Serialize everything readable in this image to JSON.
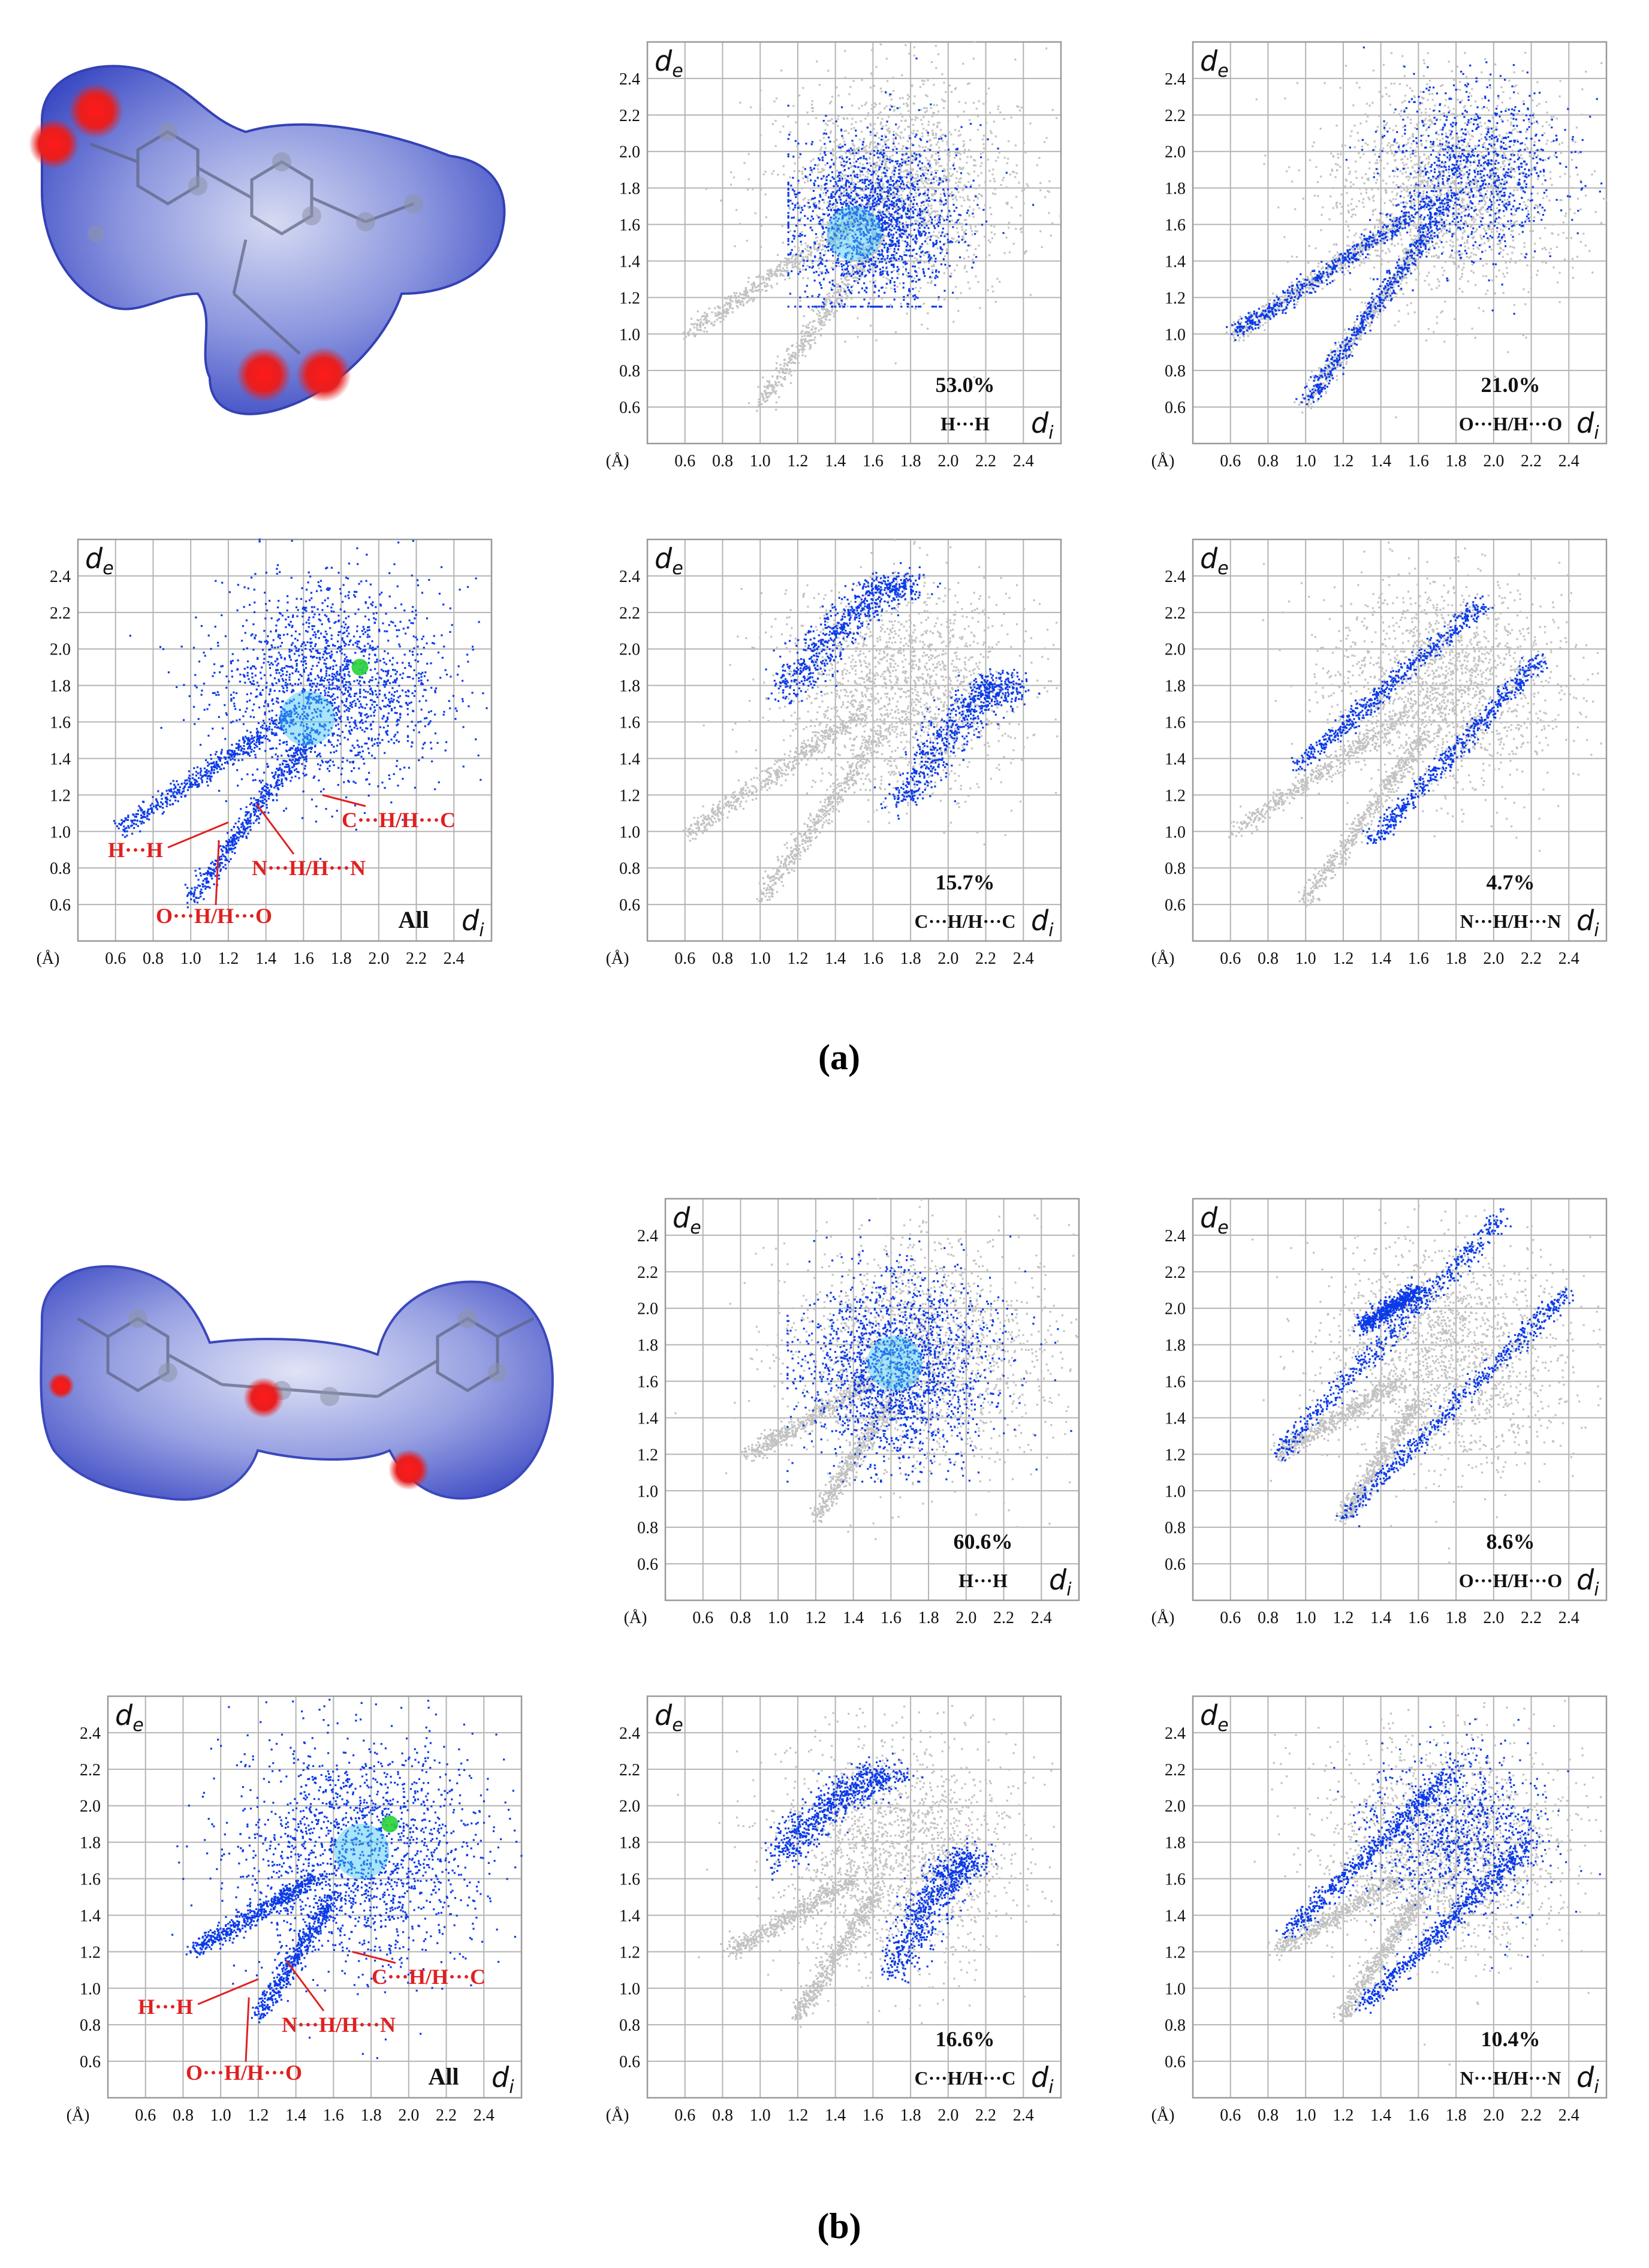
{
  "colors": {
    "grey_points": "#c2c2c2",
    "blue_points": "#0b3be8",
    "cyan_core": "#3fc4f3",
    "green_core": "#28d13a",
    "annotation": "#e02020",
    "surface_blue": "#5a68d0",
    "surface_red": "#e81e1e"
  },
  "panel_labels": {
    "a": "(a)",
    "b": "(b)"
  },
  "molecules": [
    {
      "name": "hirshfeld-surface-a"
    },
    {
      "name": "hirshfeld-surface-b"
    }
  ],
  "chart_data": [
    {
      "id": "a-all",
      "type": "scatter",
      "panel": "a",
      "title": "",
      "xlabel": "d_i",
      "ylabel": "d_e",
      "xlim": [
        0.4,
        2.6
      ],
      "ylim": [
        0.4,
        2.6
      ],
      "xticks": [
        "0.6",
        "0.8",
        "1.0",
        "1.2",
        "1.4",
        "1.6",
        "1.8",
        "2.0",
        "2.2",
        "2.4"
      ],
      "yticks": [
        "0.6",
        "0.8",
        "1.0",
        "1.2",
        "1.4",
        "1.6",
        "1.8",
        "2.0",
        "2.2",
        "2.4"
      ],
      "unit_label": "(Å)",
      "corner_label": "All",
      "contact": "",
      "percentage": "",
      "annotations": [
        {
          "text": "H···H"
        },
        {
          "text": "O···H/H···O"
        },
        {
          "text": "N···H/H···N"
        },
        {
          "text": "C···H/H···C"
        }
      ],
      "series": [
        {
          "name": "highlighted",
          "shape": "spikes",
          "blob_center": [
            1.75,
            1.8
          ],
          "blob_spread": [
            0.42,
            0.38
          ],
          "spikes": [
            [
              0.62,
              1.0,
              1.55,
              1.65
            ],
            [
              1.0,
              0.62,
              1.65,
              1.55
            ]
          ],
          "hot_spots": [
            [
              1.62,
              1.62
            ],
            [
              1.9,
              1.9
            ]
          ]
        }
      ]
    },
    {
      "id": "a-hh",
      "type": "scatter",
      "panel": "a",
      "title": "",
      "xlabel": "d_i",
      "ylabel": "d_e",
      "xlim": [
        0.4,
        2.6
      ],
      "ylim": [
        0.4,
        2.6
      ],
      "xticks": [
        "0.6",
        "0.8",
        "1.0",
        "1.2",
        "1.4",
        "1.6",
        "1.8",
        "2.0",
        "2.2",
        "2.4"
      ],
      "yticks": [
        "0.6",
        "0.8",
        "1.0",
        "1.2",
        "1.4",
        "1.6",
        "1.8",
        "2.0",
        "2.2",
        "2.4"
      ],
      "unit_label": "(Å)",
      "corner_label": "",
      "contact": "H···H",
      "percentage": "53.0%",
      "annotations": [],
      "series": [
        {
          "name": "background",
          "shape": "spikes",
          "blob_center": [
            1.75,
            1.8
          ],
          "blob_spread": [
            0.42,
            0.38
          ],
          "spikes": [
            [
              0.62,
              1.0,
              1.55,
              1.65
            ],
            [
              1.0,
              0.62,
              1.65,
              1.55
            ]
          ],
          "hot_spots": []
        },
        {
          "name": "highlighted",
          "shape": "blob",
          "blob_center": [
            1.6,
            1.62
          ],
          "blob_spread": [
            0.3,
            0.32
          ],
          "floor": [
            1.15,
            1.15
          ],
          "hot_spots": [
            [
              1.5,
              1.55
            ]
          ]
        }
      ]
    },
    {
      "id": "a-oh",
      "type": "scatter",
      "panel": "a",
      "title": "",
      "xlabel": "d_i",
      "ylabel": "d_e",
      "xlim": [
        0.4,
        2.6
      ],
      "ylim": [
        0.4,
        2.6
      ],
      "xticks": [
        "0.6",
        "0.8",
        "1.0",
        "1.2",
        "1.4",
        "1.6",
        "1.8",
        "2.0",
        "2.2",
        "2.4"
      ],
      "yticks": [
        "0.6",
        "0.8",
        "1.0",
        "1.2",
        "1.4",
        "1.6",
        "1.8",
        "2.0",
        "2.2",
        "2.4"
      ],
      "unit_label": "(Å)",
      "corner_label": "",
      "contact": "O···H/H···O",
      "percentage": "21.0%",
      "annotations": [],
      "series": [
        {
          "name": "background",
          "shape": "spikes",
          "blob_center": [
            1.75,
            1.8
          ],
          "blob_spread": [
            0.42,
            0.38
          ],
          "spikes": [
            [
              0.62,
              1.0,
              1.55,
              1.65
            ],
            [
              1.0,
              0.62,
              1.65,
              1.55
            ]
          ],
          "hot_spots": []
        },
        {
          "name": "highlighted",
          "shape": "wings",
          "blob_center": [
            1.9,
            1.9
          ],
          "blob_spread": [
            0.3,
            0.3
          ],
          "spikes": [
            [
              0.62,
              1.0,
              1.7,
              1.75
            ],
            [
              1.0,
              0.62,
              1.75,
              1.7
            ]
          ],
          "hot_spots": []
        }
      ]
    },
    {
      "id": "a-ch",
      "type": "scatter",
      "panel": "a",
      "title": "",
      "xlabel": "d_i",
      "ylabel": "d_e",
      "xlim": [
        0.4,
        2.6
      ],
      "ylim": [
        0.4,
        2.6
      ],
      "xticks": [
        "0.6",
        "0.8",
        "1.0",
        "1.2",
        "1.4",
        "1.6",
        "1.8",
        "2.0",
        "2.2",
        "2.4"
      ],
      "yticks": [
        "0.6",
        "0.8",
        "1.0",
        "1.2",
        "1.4",
        "1.6",
        "1.8",
        "2.0",
        "2.2",
        "2.4"
      ],
      "unit_label": "(Å)",
      "corner_label": "",
      "contact": "C···H/H···C",
      "percentage": "15.7%",
      "annotations": [],
      "series": [
        {
          "name": "background",
          "shape": "spikes",
          "blob_center": [
            1.75,
            1.8
          ],
          "blob_spread": [
            0.42,
            0.38
          ],
          "spikes": [
            [
              0.62,
              1.0,
              1.55,
              1.65
            ],
            [
              1.0,
              0.62,
              1.65,
              1.55
            ]
          ],
          "hot_spots": []
        },
        {
          "name": "highlighted",
          "shape": "wings",
          "arcs": [
            [
              1.15,
              1.75,
              1.8,
              2.35
            ],
            [
              1.75,
              1.15,
              2.35,
              1.8
            ]
          ],
          "hot_spots": []
        }
      ]
    },
    {
      "id": "a-nh",
      "type": "scatter",
      "panel": "a",
      "title": "",
      "xlabel": "d_i",
      "ylabel": "d_e",
      "xlim": [
        0.4,
        2.6
      ],
      "ylim": [
        0.4,
        2.6
      ],
      "xticks": [
        "0.6",
        "0.8",
        "1.0",
        "1.2",
        "1.4",
        "1.6",
        "1.8",
        "2.0",
        "2.2",
        "2.4"
      ],
      "yticks": [
        "0.6",
        "0.8",
        "1.0",
        "1.2",
        "1.4",
        "1.6",
        "1.8",
        "2.0",
        "2.2",
        "2.4"
      ],
      "unit_label": "(Å)",
      "corner_label": "",
      "contact": "N···H/H···N",
      "percentage": "4.7%",
      "annotations": [],
      "series": [
        {
          "name": "background",
          "shape": "spikes",
          "blob_center": [
            1.75,
            1.8
          ],
          "blob_spread": [
            0.42,
            0.38
          ],
          "spikes": [
            [
              0.62,
              1.0,
              1.55,
              1.65
            ],
            [
              1.0,
              0.62,
              1.65,
              1.55
            ]
          ],
          "hot_spots": []
        },
        {
          "name": "highlighted",
          "shape": "lines",
          "spikes": [
            [
              0.95,
              1.35,
              1.95,
              2.25
            ],
            [
              1.35,
              0.95,
              2.25,
              1.95
            ]
          ],
          "hot_spots": []
        }
      ]
    },
    {
      "id": "b-all",
      "type": "scatter",
      "panel": "b",
      "title": "",
      "xlabel": "d_i",
      "ylabel": "d_e",
      "xlim": [
        0.4,
        2.6
      ],
      "ylim": [
        0.4,
        2.6
      ],
      "xticks": [
        "0.6",
        "0.8",
        "1.0",
        "1.2",
        "1.4",
        "1.6",
        "1.8",
        "2.0",
        "2.2",
        "2.4"
      ],
      "yticks": [
        "0.6",
        "0.8",
        "1.0",
        "1.2",
        "1.4",
        "1.6",
        "1.8",
        "2.0",
        "2.2",
        "2.4"
      ],
      "unit_label": "(Å)",
      "corner_label": "All",
      "contact": "",
      "percentage": "",
      "annotations": [
        {
          "text": "H···H"
        },
        {
          "text": "O···H/H···O"
        },
        {
          "text": "N···H/H···N"
        },
        {
          "text": "C···H/H···C"
        }
      ],
      "series": [
        {
          "name": "highlighted",
          "shape": "spikes",
          "blob_center": [
            1.75,
            1.75
          ],
          "blob_spread": [
            0.45,
            0.42
          ],
          "spikes": [
            [
              0.85,
              1.2,
              1.5,
              1.6
            ],
            [
              1.2,
              0.85,
              1.6,
              1.5
            ]
          ],
          "hot_spots": [
            [
              1.75,
              1.75
            ],
            [
              1.9,
              1.9
            ]
          ]
        }
      ]
    },
    {
      "id": "b-hh",
      "type": "scatter",
      "panel": "b",
      "title": "",
      "xlabel": "d_i",
      "ylabel": "d_e",
      "xlim": [
        0.4,
        2.6
      ],
      "ylim": [
        0.4,
        2.6
      ],
      "xticks": [
        "0.6",
        "0.8",
        "1.0",
        "1.2",
        "1.4",
        "1.6",
        "1.8",
        "2.0",
        "2.2",
        "2.4"
      ],
      "yticks": [
        "0.6",
        "0.8",
        "1.0",
        "1.2",
        "1.4",
        "1.6",
        "1.8",
        "2.0",
        "2.2",
        "2.4"
      ],
      "unit_label": "(Å)",
      "corner_label": "",
      "contact": "H···H",
      "percentage": "60.6%",
      "annotations": [],
      "series": [
        {
          "name": "background",
          "shape": "spikes",
          "blob_center": [
            1.75,
            1.75
          ],
          "blob_spread": [
            0.45,
            0.42
          ],
          "spikes": [
            [
              0.85,
              1.2,
              1.5,
              1.6
            ],
            [
              1.2,
              0.85,
              1.6,
              1.5
            ]
          ],
          "hot_spots": []
        },
        {
          "name": "highlighted",
          "shape": "blob",
          "blob_center": [
            1.65,
            1.68
          ],
          "blob_spread": [
            0.34,
            0.34
          ],
          "floor": [
            1.05,
            1.05
          ],
          "hot_spots": [
            [
              1.62,
              1.7
            ]
          ]
        }
      ]
    },
    {
      "id": "b-oh",
      "type": "scatter",
      "panel": "b",
      "title": "",
      "xlabel": "d_i",
      "ylabel": "d_e",
      "xlim": [
        0.4,
        2.6
      ],
      "ylim": [
        0.4,
        2.6
      ],
      "xticks": [
        "0.6",
        "0.8",
        "1.0",
        "1.2",
        "1.4",
        "1.6",
        "1.8",
        "2.0",
        "2.2",
        "2.4"
      ],
      "yticks": [
        "0.6",
        "0.8",
        "1.0",
        "1.2",
        "1.4",
        "1.6",
        "1.8",
        "2.0",
        "2.2",
        "2.4"
      ],
      "unit_label": "(Å)",
      "corner_label": "",
      "contact": "O···H/H···O",
      "percentage": "8.6%",
      "annotations": [],
      "series": [
        {
          "name": "background",
          "shape": "spikes",
          "blob_center": [
            1.75,
            1.75
          ],
          "blob_spread": [
            0.45,
            0.42
          ],
          "spikes": [
            [
              0.85,
              1.2,
              1.5,
              1.6
            ],
            [
              1.2,
              0.85,
              1.6,
              1.5
            ]
          ],
          "hot_spots": []
        },
        {
          "name": "highlighted",
          "shape": "lines",
          "spikes": [
            [
              0.85,
              1.2,
              2.05,
              2.5
            ],
            [
              1.2,
              0.85,
              2.4,
              2.1
            ],
            [
              1.3,
              1.9,
              1.6,
              2.1
            ]
          ],
          "hot_spots": []
        }
      ]
    },
    {
      "id": "b-ch",
      "type": "scatter",
      "panel": "b",
      "title": "",
      "xlabel": "d_i",
      "ylabel": "d_e",
      "xlim": [
        0.4,
        2.6
      ],
      "ylim": [
        0.4,
        2.6
      ],
      "xticks": [
        "0.6",
        "0.8",
        "1.0",
        "1.2",
        "1.4",
        "1.6",
        "1.8",
        "2.0",
        "2.2",
        "2.4"
      ],
      "yticks": [
        "0.6",
        "0.8",
        "1.0",
        "1.2",
        "1.4",
        "1.6",
        "1.8",
        "2.0",
        "2.2",
        "2.4"
      ],
      "unit_label": "(Å)",
      "corner_label": "",
      "contact": "C···H/H···C",
      "percentage": "16.6%",
      "annotations": [],
      "series": [
        {
          "name": "background",
          "shape": "spikes",
          "blob_center": [
            1.75,
            1.75
          ],
          "blob_spread": [
            0.45,
            0.42
          ],
          "spikes": [
            [
              0.85,
              1.2,
              1.5,
              1.6
            ],
            [
              1.2,
              0.85,
              1.6,
              1.5
            ]
          ],
          "hot_spots": []
        },
        {
          "name": "highlighted",
          "shape": "wings",
          "arcs": [
            [
              1.1,
              1.72,
              1.7,
              2.15
            ],
            [
              1.72,
              1.1,
              2.15,
              1.7
            ]
          ],
          "hot_spots": []
        }
      ]
    },
    {
      "id": "b-nh",
      "type": "scatter",
      "panel": "b",
      "title": "",
      "xlabel": "d_i",
      "ylabel": "d_e",
      "xlim": [
        0.4,
        2.6
      ],
      "ylim": [
        0.4,
        2.6
      ],
      "xticks": [
        "0.6",
        "0.8",
        "1.0",
        "1.2",
        "1.4",
        "1.6",
        "1.8",
        "2.0",
        "2.2",
        "2.4"
      ],
      "yticks": [
        "0.6",
        "0.8",
        "1.0",
        "1.2",
        "1.4",
        "1.6",
        "1.8",
        "2.0",
        "2.2",
        "2.4"
      ],
      "unit_label": "(Å)",
      "corner_label": "",
      "contact": "N···H/H···N",
      "percentage": "10.4%",
      "annotations": [],
      "series": [
        {
          "name": "background",
          "shape": "spikes",
          "blob_center": [
            1.75,
            1.75
          ],
          "blob_spread": [
            0.45,
            0.42
          ],
          "spikes": [
            [
              0.85,
              1.2,
              1.5,
              1.6
            ],
            [
              1.2,
              0.85,
              1.6,
              1.5
            ]
          ],
          "hot_spots": []
        },
        {
          "name": "highlighted",
          "shape": "wings",
          "blob_center": [
            1.8,
            1.85
          ],
          "blob_spread": [
            0.32,
            0.3
          ],
          "spikes": [
            [
              0.9,
              1.3,
              1.8,
              2.2
            ],
            [
              1.3,
              0.9,
              2.2,
              1.8
            ]
          ],
          "hot_spots": []
        }
      ]
    }
  ]
}
